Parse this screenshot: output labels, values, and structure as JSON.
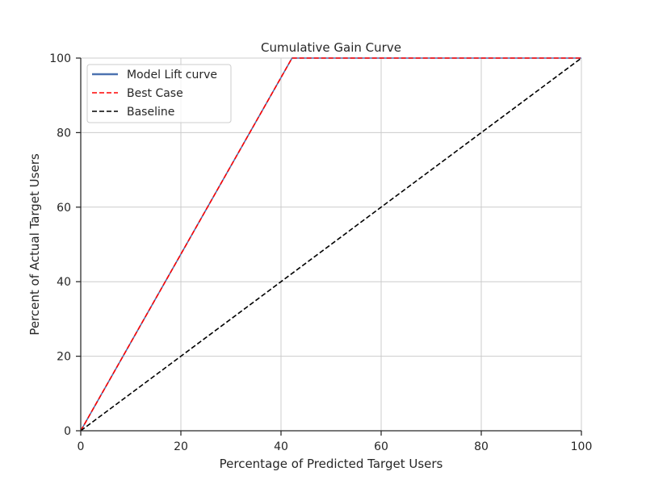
{
  "chart_data": {
    "type": "line",
    "title": "Cumulative Gain Curve",
    "xlabel": "Percentage of Predicted Target Users",
    "ylabel": "Percent of Actual Target Users",
    "xlim": [
      0,
      100
    ],
    "ylim": [
      0,
      100
    ],
    "xticks": [
      0,
      20,
      40,
      60,
      80,
      100
    ],
    "yticks": [
      0,
      20,
      40,
      60,
      80,
      100
    ],
    "xtick_labels": [
      "0",
      "20",
      "40",
      "60",
      "80",
      "100"
    ],
    "ytick_labels": [
      "0",
      "20",
      "40",
      "60",
      "80",
      "100"
    ],
    "grid": true,
    "legend_position": "top-left",
    "series": [
      {
        "name": "Model Lift curve",
        "style": "solid",
        "color": "#4c72b0",
        "x": [
          0,
          42.2,
          100
        ],
        "y": [
          0,
          100,
          100
        ]
      },
      {
        "name": "Best Case",
        "style": "dashed",
        "color": "#ff0000",
        "x": [
          0,
          42.2,
          100
        ],
        "y": [
          0,
          100,
          100
        ]
      },
      {
        "name": "Baseline",
        "style": "dashed",
        "color": "#000000",
        "x": [
          0,
          100
        ],
        "y": [
          0,
          100
        ]
      }
    ]
  }
}
